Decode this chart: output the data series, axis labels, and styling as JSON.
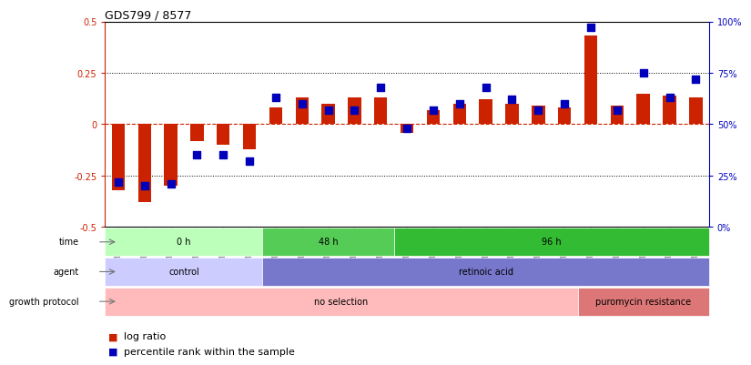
{
  "title": "GDS799 / 8577",
  "samples": [
    "GSM25978",
    "GSM25979",
    "GSM26006",
    "GSM26007",
    "GSM26008",
    "GSM26009",
    "GSM26010",
    "GSM26011",
    "GSM26012",
    "GSM26013",
    "GSM26014",
    "GSM26015",
    "GSM26016",
    "GSM26017",
    "GSM26018",
    "GSM26019",
    "GSM26020",
    "GSM26021",
    "GSM26022",
    "GSM26023",
    "GSM26024",
    "GSM26025",
    "GSM26026"
  ],
  "log_ratio": [
    -0.32,
    -0.38,
    -0.3,
    -0.08,
    -0.1,
    -0.12,
    0.08,
    0.13,
    0.1,
    0.13,
    0.13,
    -0.04,
    0.07,
    0.1,
    0.12,
    0.1,
    0.09,
    0.08,
    0.43,
    0.09,
    0.15,
    0.14,
    0.13
  ],
  "percentile_rank": [
    22,
    20,
    21,
    35,
    35,
    32,
    63,
    60,
    57,
    57,
    68,
    48,
    57,
    60,
    68,
    62,
    57,
    60,
    97,
    57,
    75,
    63,
    72
  ],
  "red_color": "#CC2200",
  "blue_color": "#0000BB",
  "ylim_left": [
    -0.5,
    0.5
  ],
  "ylim_right": [
    0,
    100
  ],
  "yticks_left": [
    -0.5,
    -0.25,
    0.0,
    0.25,
    0.5
  ],
  "ytick_labels_left": [
    "-0.5",
    "-0.25",
    "0",
    "0.25",
    "0.5"
  ],
  "yticks_right": [
    0,
    25,
    50,
    75,
    100
  ],
  "ytick_labels_right": [
    "0%",
    "25%",
    "50%",
    "75%",
    "100%"
  ],
  "dotted_hlines": [
    -0.25,
    0.25
  ],
  "time_groups": [
    {
      "label": "0 h",
      "start": 0,
      "end": 6,
      "color": "#bbffbb"
    },
    {
      "label": "48 h",
      "start": 6,
      "end": 11,
      "color": "#55cc55"
    },
    {
      "label": "96 h",
      "start": 11,
      "end": 23,
      "color": "#33bb33"
    }
  ],
  "agent_groups": [
    {
      "label": "control",
      "start": 0,
      "end": 6,
      "color": "#ccccff"
    },
    {
      "label": "retinoic acid",
      "start": 6,
      "end": 23,
      "color": "#7777cc"
    }
  ],
  "growth_groups": [
    {
      "label": "no selection",
      "start": 0,
      "end": 18,
      "color": "#ffbbbb"
    },
    {
      "label": "puromycin resistance",
      "start": 18,
      "end": 23,
      "color": "#dd7777"
    }
  ],
  "row_labels": [
    "time",
    "agent",
    "growth protocol"
  ],
  "bar_width": 0.5,
  "dot_size": 28,
  "bg_color": "#ffffff",
  "header_bg": "#cccccc",
  "legend_red": "#CC2200",
  "legend_blue": "#0000BB"
}
